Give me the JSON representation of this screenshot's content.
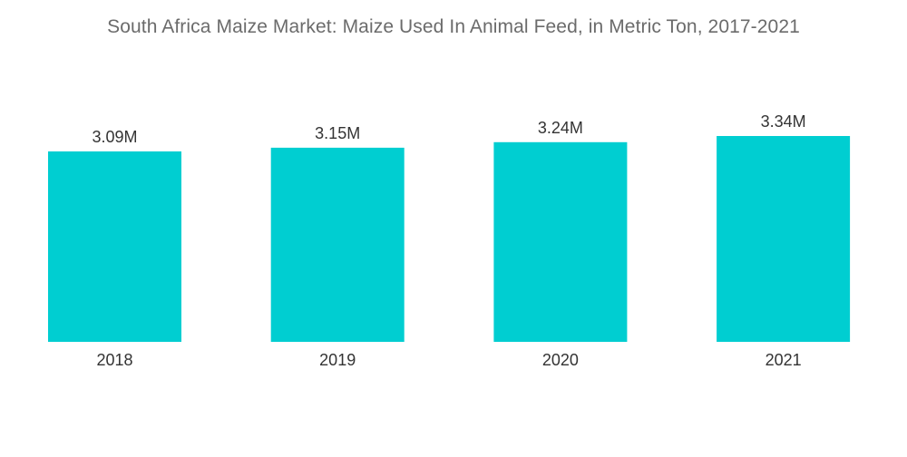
{
  "chart_data": {
    "type": "bar",
    "title": "South Africa Maize Market: Maize Used In Animal Feed, in Metric Ton, 2017-2021",
    "categories": [
      "2018",
      "2019",
      "2020",
      "2021"
    ],
    "values": [
      3.09,
      3.15,
      3.24,
      3.34
    ],
    "value_labels": [
      "3.09M",
      "3.15M",
      "3.24M",
      "3.34M"
    ],
    "xlabel": "",
    "ylabel": "",
    "unit": "M",
    "grid": false,
    "legend": "none",
    "colors": {
      "bar": "#00CED1"
    }
  }
}
